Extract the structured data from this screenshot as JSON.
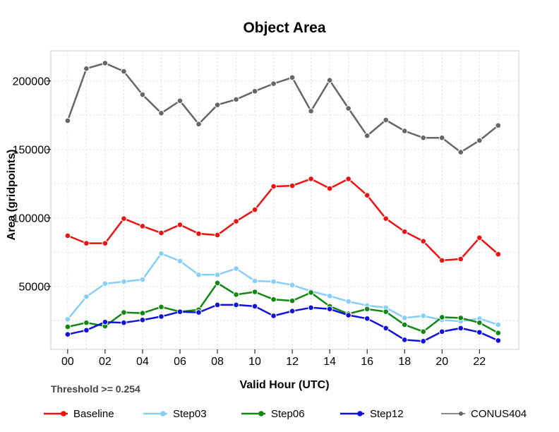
{
  "chart_data": {
    "type": "line",
    "title": "Object Area",
    "xlabel": "Valid Hour (UTC)",
    "ylabel": "Area (gridpoints)",
    "note": "Threshold >= 0.254",
    "x": [
      0,
      1,
      2,
      3,
      4,
      5,
      6,
      7,
      8,
      9,
      10,
      11,
      12,
      13,
      14,
      15,
      16,
      17,
      18,
      19,
      20,
      21,
      22,
      23
    ],
    "x_ticks": [
      0,
      2,
      4,
      6,
      8,
      10,
      12,
      14,
      16,
      18,
      20,
      22
    ],
    "x_tick_labels": [
      "00",
      "02",
      "04",
      "06",
      "08",
      "10",
      "12",
      "14",
      "16",
      "18",
      "20",
      "22"
    ],
    "y_ticks": [
      50000,
      100000,
      150000,
      200000
    ],
    "y_tick_labels": [
      "50000",
      "100000",
      "150000",
      "200000"
    ],
    "xlim": [
      -0.9,
      24.1
    ],
    "ylim": [
      4000,
      222000
    ],
    "grid": true,
    "legend_position": "bottom",
    "series": [
      {
        "name": "Baseline",
        "color": "#ee1111",
        "values": [
          87000,
          81500,
          81500,
          99500,
          94000,
          89000,
          95000,
          88500,
          87500,
          97500,
          106000,
          123000,
          123500,
          128500,
          121500,
          128500,
          116500,
          99500,
          90000,
          83000,
          69000,
          70000,
          85500,
          73500
        ]
      },
      {
        "name": "Step03",
        "color": "#87cefa",
        "values": [
          26000,
          42500,
          52000,
          53500,
          55000,
          74000,
          68500,
          58500,
          58500,
          63000,
          54000,
          53500,
          51000,
          46500,
          43000,
          39000,
          36000,
          34500,
          27000,
          28500,
          25500,
          24500,
          26500,
          22000
        ]
      },
      {
        "name": "Step06",
        "color": "#118811",
        "values": [
          20500,
          23500,
          21000,
          31000,
          30500,
          35000,
          31500,
          33000,
          52500,
          44000,
          46000,
          40500,
          39500,
          45500,
          35500,
          30000,
          33500,
          31500,
          22000,
          17000,
          27500,
          27000,
          23500,
          16000
        ]
      },
      {
        "name": "Step12",
        "color": "#1111dd",
        "values": [
          15000,
          18000,
          24000,
          23500,
          25500,
          28000,
          31500,
          31000,
          36500,
          36500,
          35500,
          28500,
          32000,
          34500,
          33500,
          29000,
          26500,
          19500,
          11000,
          10000,
          17000,
          19500,
          16500,
          10500
        ]
      },
      {
        "name": "CONUS404",
        "color": "#666666",
        "values": [
          171000,
          209000,
          213000,
          207000,
          190000,
          176500,
          185500,
          168500,
          182500,
          186500,
          192500,
          198000,
          202500,
          178000,
          200500,
          180000,
          160000,
          171500,
          163500,
          158500,
          158500,
          148000,
          156500,
          167500
        ]
      }
    ]
  }
}
